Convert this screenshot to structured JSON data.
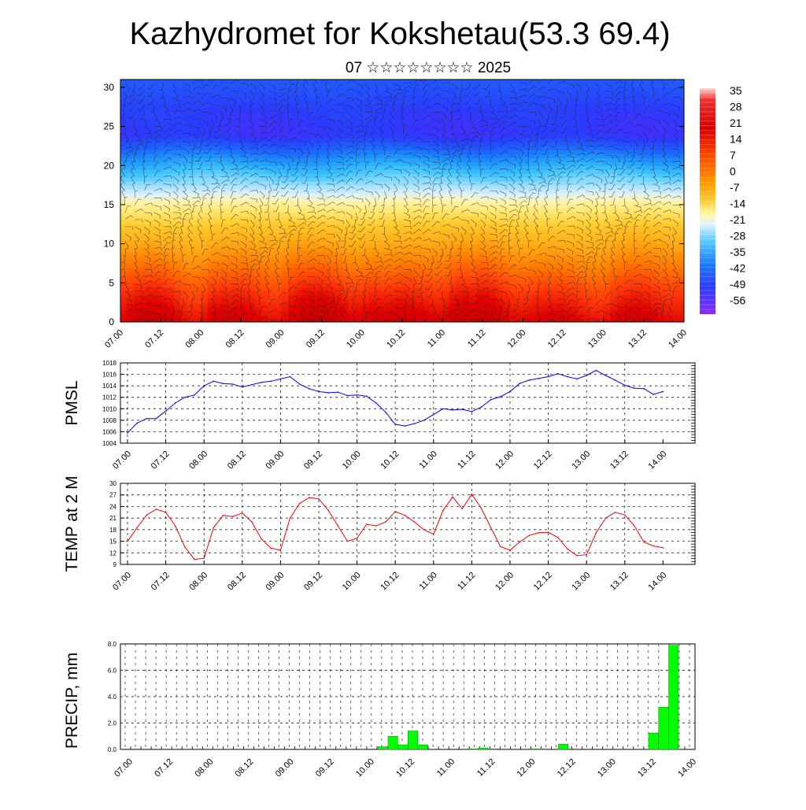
{
  "title": "Kazhydromet for Kokshetau(53.3 69.4)",
  "subtitle": "07 ☆☆☆☆☆☆☆☆ 2025",
  "time_labels": [
    "07.00",
    "07.12",
    "08.00",
    "08.12",
    "09.00",
    "09.12",
    "10.00",
    "10.12",
    "11.00",
    "11.12",
    "12.00",
    "12.12",
    "13.00",
    "13.12",
    "14.00"
  ],
  "chart_data": [
    {
      "type": "heatmap",
      "title": "",
      "xlabel": "",
      "ylabel": "",
      "x": [
        "07.00",
        "07.12",
        "08.00",
        "08.12",
        "09.00",
        "09.12",
        "10.00",
        "10.12",
        "11.00",
        "11.12",
        "12.00",
        "12.12",
        "13.00",
        "13.12",
        "14.00"
      ],
      "y_ticks": [
        0,
        5,
        10,
        15,
        20,
        25,
        30
      ],
      "ylim": [
        0,
        31
      ],
      "colorbar": {
        "labels": [
          "35",
          "28",
          "21",
          "14",
          "7",
          "0",
          "-7",
          "-14",
          "-21",
          "-28",
          "-35",
          "-42",
          "-49",
          "-56"
        ],
        "range": [
          -60,
          39
        ]
      },
      "temperature_profile": [
        {
          "height": 0,
          "value": 30
        },
        {
          "height": 4,
          "value": 22
        },
        {
          "height": 8,
          "value": 12
        },
        {
          "height": 12,
          "value": 2
        },
        {
          "height": 15,
          "value": -8
        },
        {
          "height": 18,
          "value": -22
        },
        {
          "height": 21,
          "value": -36
        },
        {
          "height": 24,
          "value": -52
        },
        {
          "height": 27,
          "value": -50
        },
        {
          "height": 31,
          "value": -44
        }
      ],
      "overlay": "wind barbs"
    },
    {
      "type": "line",
      "ylabel": "PMSL",
      "ylim": [
        1004,
        1018
      ],
      "y_ticks": [
        1004,
        1006,
        1008,
        1010,
        1012,
        1014,
        1016,
        1018
      ],
      "color": "#0000ff",
      "x": [
        0,
        3,
        6,
        9,
        12,
        15,
        18,
        21,
        24,
        27,
        30,
        33,
        36,
        39,
        42,
        45,
        48,
        51,
        54,
        57,
        60,
        63,
        66,
        69,
        72,
        75,
        78,
        81,
        84,
        87,
        90,
        93,
        96,
        99,
        102,
        105,
        108,
        111,
        114,
        117,
        120,
        123,
        126,
        129,
        132,
        135,
        138,
        141,
        144,
        147,
        150,
        153,
        156,
        159,
        162,
        165,
        168
      ],
      "values": [
        1005.8,
        1007.5,
        1008.3,
        1008.3,
        1009.6,
        1011,
        1012,
        1012.4,
        1014,
        1014.8,
        1014.4,
        1014.3,
        1013.8,
        1014.2,
        1014.6,
        1014.8,
        1015.2,
        1015.6,
        1014.3,
        1013.5,
        1013,
        1012.8,
        1012.9,
        1012.3,
        1012.4,
        1012.2,
        1011,
        1009.4,
        1007.3,
        1007,
        1007.4,
        1008,
        1009,
        1010,
        1009.8,
        1009.9,
        1009.5,
        1010.3,
        1011.6,
        1012.1,
        1013,
        1014.4,
        1015,
        1015.3,
        1015.6,
        1016.1,
        1015.6,
        1015.2,
        1015.8,
        1016.7,
        1015.8,
        1015,
        1014.1,
        1013.6,
        1013.5,
        1012.5,
        1013
      ]
    },
    {
      "type": "line",
      "ylabel": "TEMP at 2 M",
      "ylim": [
        9,
        30
      ],
      "y_ticks": [
        9,
        12,
        15,
        18,
        21,
        24,
        27,
        30
      ],
      "color": "#ff0000",
      "x": [
        0,
        3,
        6,
        9,
        12,
        15,
        18,
        21,
        24,
        27,
        30,
        33,
        36,
        39,
        42,
        45,
        48,
        51,
        54,
        57,
        60,
        63,
        66,
        69,
        72,
        75,
        78,
        81,
        84,
        87,
        90,
        93,
        96,
        99,
        102,
        105,
        108,
        111,
        114,
        117,
        120,
        123,
        126,
        129,
        132,
        135,
        138,
        141,
        144,
        147,
        150,
        153,
        156,
        159,
        162,
        165,
        168
      ],
      "values": [
        15,
        18.5,
        21.8,
        23.3,
        22.5,
        19,
        13.5,
        10.3,
        10.6,
        18.5,
        21.7,
        21.4,
        22.3,
        20,
        15.6,
        13.2,
        12.7,
        21,
        24.8,
        26.3,
        26,
        23,
        19,
        15,
        15.8,
        19.4,
        19,
        20,
        22.7,
        21.7,
        20,
        18,
        16.8,
        23,
        26.5,
        23.4,
        27.2,
        23.5,
        18.5,
        13.6,
        12.7,
        14.8,
        16.5,
        17.2,
        17.3,
        16,
        13,
        11.3,
        11.5,
        17.2,
        21,
        22.5,
        21.8,
        19,
        14.8,
        13.8,
        13.3
      ]
    },
    {
      "type": "bar",
      "ylabel": "PRECIP, mm",
      "ylim": [
        0,
        8
      ],
      "y_ticks": [
        "0.0",
        "2.0",
        "4.0",
        "6.0",
        "8.0"
      ],
      "color": "#00ff00",
      "bars": [
        {
          "x": 78,
          "value": 0.2
        },
        {
          "x": 81,
          "value": 1.0
        },
        {
          "x": 84,
          "value": 0.35
        },
        {
          "x": 87,
          "value": 1.4
        },
        {
          "x": 90,
          "value": 0.35
        },
        {
          "x": 105,
          "value": 0.05
        },
        {
          "x": 108,
          "value": 0.1
        },
        {
          "x": 111,
          "value": 0.05
        },
        {
          "x": 123,
          "value": 0.05
        },
        {
          "x": 126,
          "value": 0.05
        },
        {
          "x": 132,
          "value": 0.4
        },
        {
          "x": 159,
          "value": 1.25
        },
        {
          "x": 162,
          "value": 3.2
        },
        {
          "x": 165,
          "value": 7.9
        }
      ]
    }
  ]
}
